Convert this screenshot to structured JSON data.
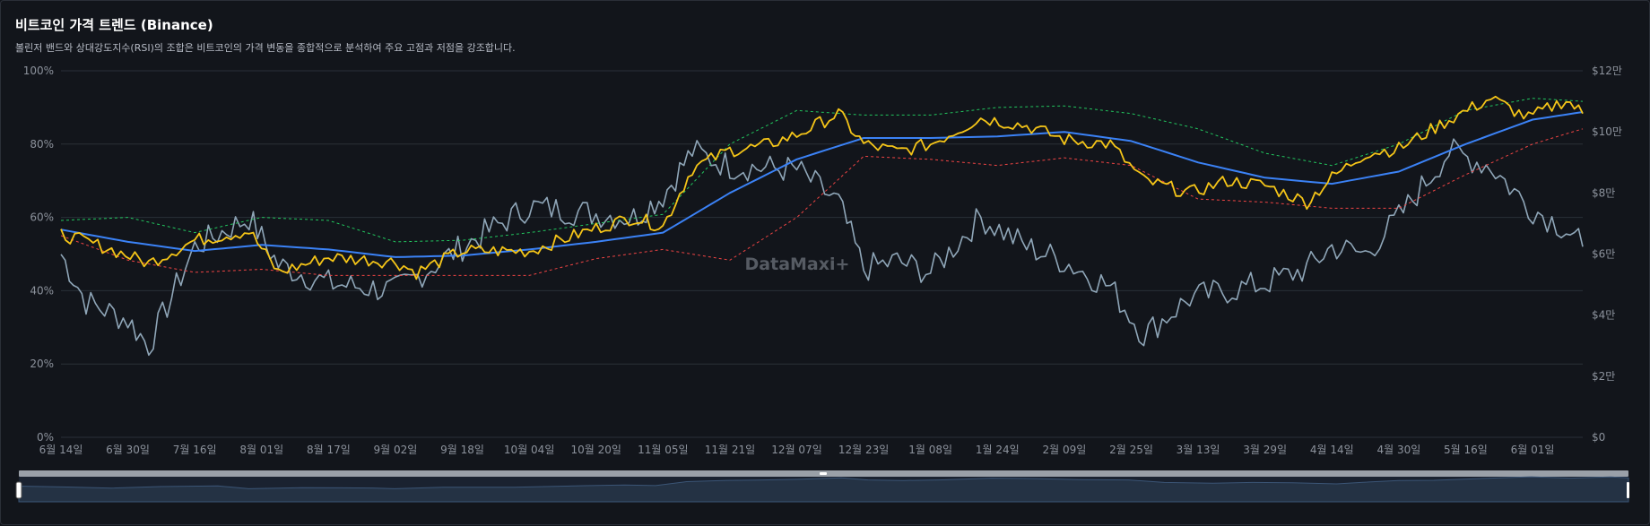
{
  "header": {
    "title": "비트코인 가격 트렌드 (Binance)",
    "subtitle": "볼린저 밴드와 상대강도지수(RSI)의 조합은 비트코인의 가격 변동을 종합적으로 분석하여 주요 고점과 저점을 강조합니다."
  },
  "watermark": "DataMaxi+",
  "colors": {
    "background": "#12151b",
    "price": "#f5c518",
    "sma": "#3b82f6",
    "upper_band": "#22c55e",
    "lower_band": "#ef4444",
    "rsi": "#8fa6b8",
    "grid": "#2a3038"
  },
  "chart_data": {
    "type": "line",
    "x_ticks": [
      "6월 14일",
      "6월 30일",
      "7월 16일",
      "8월 01일",
      "8월 17일",
      "9월 02일",
      "9월 18일",
      "10월 04일",
      "10월 20일",
      "11월 05일",
      "11월 21일",
      "12월 07일",
      "12월 23일",
      "1월 08일",
      "1월 24일",
      "2월 09일",
      "2월 25일",
      "3월 13일",
      "3월 29일",
      "4월 14일",
      "4월 30일",
      "5월 16일",
      "6월 01일"
    ],
    "left_axis": {
      "ticks": [
        "0%",
        "20%",
        "40%",
        "60%",
        "80%",
        "100%"
      ],
      "range": [
        0,
        100
      ]
    },
    "right_axis": {
      "ticks": [
        "$0",
        "$2만",
        "$4만",
        "$6만",
        "$8만",
        "$10만",
        "$12만"
      ],
      "range": [
        0,
        120000
      ]
    },
    "grid": true,
    "date_range": [
      "6월 14일",
      "6월 13일"
    ],
    "series": [
      {
        "role": "price",
        "axis": "right",
        "keypoints": [
          [
            "6월 14일",
            66500
          ],
          [
            "6월 25일",
            62000
          ],
          [
            "7월 05일",
            57000
          ],
          [
            "7월 16일",
            64500
          ],
          [
            "7월 29일",
            67500
          ],
          [
            "8월 05일",
            54000
          ],
          [
            "8월 17일",
            59000
          ],
          [
            "9월 02일",
            57500
          ],
          [
            "9월 07일",
            54000
          ],
          [
            "9월 18일",
            61000
          ],
          [
            "10월 04일",
            61000
          ],
          [
            "10월 20일",
            68500
          ],
          [
            "10월 29일",
            72000
          ],
          [
            "11월 05일",
            69000
          ],
          [
            "11월 12일",
            88000
          ],
          [
            "11월 21일",
            94000
          ],
          [
            "11월 28일",
            95000
          ],
          [
            "12월 07일",
            99000
          ],
          [
            "12월 17日",
            106000
          ],
          [
            "12월 23일",
            96000
          ],
          [
            "12월 31일",
            93500
          ],
          [
            "1월 08일",
            96000
          ],
          [
            "1월 20일",
            104500
          ],
          [
            "1월 31일",
            102000
          ],
          [
            "2월 09일",
            97500
          ],
          [
            "2월 20일",
            96000
          ],
          [
            "2월 28일",
            84000
          ],
          [
            "3월 11일",
            80000
          ],
          [
            "3월 20일",
            84000
          ],
          [
            "3월 29일",
            82500
          ],
          [
            "4월 08일",
            77000
          ],
          [
            "4월 14일",
            85000
          ],
          [
            "4월 22일",
            93000
          ],
          [
            "4월 30일",
            94500
          ],
          [
            "5월 12일",
            104000
          ],
          [
            "5월 22일",
            111000
          ],
          [
            "5월 31일",
            104500
          ],
          [
            "6월 09일",
            110500
          ],
          [
            "6월 13일",
            106000
          ]
        ]
      },
      {
        "role": "sma",
        "axis": "right",
        "keypoints": [
          [
            "6월 14일",
            68000
          ],
          [
            "6월 30일",
            64000
          ],
          [
            "7월 16일",
            61000
          ],
          [
            "8월 01일",
            63000
          ],
          [
            "8월 17일",
            61500
          ],
          [
            "9월 02일",
            59000
          ],
          [
            "9월 18일",
            59500
          ],
          [
            "10월 04일",
            61500
          ],
          [
            "10월 20일",
            64000
          ],
          [
            "11월 05일",
            67000
          ],
          [
            "11월 21일",
            80000
          ],
          [
            "12월 07일",
            91000
          ],
          [
            "12월 23일",
            98000
          ],
          [
            "1월 08일",
            98000
          ],
          [
            "1월 24일",
            98500
          ],
          [
            "2월 09일",
            100000
          ],
          [
            "2월 25일",
            97000
          ],
          [
            "3월 13일",
            90000
          ],
          [
            "3월 29일",
            85000
          ],
          [
            "4월 14일",
            83000
          ],
          [
            "4월 30일",
            87000
          ],
          [
            "5월 16일",
            96000
          ],
          [
            "6월 01일",
            104000
          ],
          [
            "6월 13일",
            106500
          ]
        ]
      },
      {
        "role": "upper_band",
        "axis": "right",
        "keypoints": [
          [
            "6월 14일",
            71000
          ],
          [
            "6월 30일",
            72000
          ],
          [
            "7월 16일",
            67000
          ],
          [
            "8월 01일",
            72000
          ],
          [
            "8월 17일",
            71000
          ],
          [
            "9월 02일",
            64000
          ],
          [
            "9월 18일",
            64500
          ],
          [
            "10월 04일",
            67000
          ],
          [
            "10월 20일",
            70000
          ],
          [
            "11월 05일",
            73000
          ],
          [
            "11월 21일",
            96000
          ],
          [
            "12월 07일",
            107000
          ],
          [
            "12월 23일",
            105500
          ],
          [
            "1월 08일",
            105500
          ],
          [
            "1월 24일",
            108000
          ],
          [
            "2월 09일",
            108500
          ],
          [
            "2월 25일",
            106000
          ],
          [
            "3월 13일",
            101000
          ],
          [
            "3월 29일",
            93000
          ],
          [
            "4월 14일",
            89000
          ],
          [
            "4월 30일",
            96000
          ],
          [
            "5월 16일",
            107000
          ],
          [
            "6월 01일",
            111000
          ],
          [
            "6월 13일",
            110000
          ]
        ]
      },
      {
        "role": "lower_band",
        "axis": "right",
        "keypoints": [
          [
            "6월 14일",
            66000
          ],
          [
            "6월 30일",
            58000
          ],
          [
            "7월 16일",
            54000
          ],
          [
            "8월 01일",
            55000
          ],
          [
            "8월 17일",
            53000
          ],
          [
            "9월 02일",
            53000
          ],
          [
            "9월 18일",
            53000
          ],
          [
            "10월 04일",
            53000
          ],
          [
            "10월 20일",
            58500
          ],
          [
            "11월 05일",
            61500
          ],
          [
            "11월 21일",
            58000
          ],
          [
            "12월 07일",
            72000
          ],
          [
            "12월 23일",
            92000
          ],
          [
            "1월 08일",
            91000
          ],
          [
            "1월 24일",
            89000
          ],
          [
            "2월 09일",
            91500
          ],
          [
            "2월 25일",
            89000
          ],
          [
            "3월 13일",
            78000
          ],
          [
            "3월 29일",
            77000
          ],
          [
            "4월 14일",
            75000
          ],
          [
            "4월 30일",
            75000
          ],
          [
            "5월 16일",
            86000
          ],
          [
            "6월 01일",
            96000
          ],
          [
            "6월 13일",
            101000
          ]
        ]
      },
      {
        "role": "rsi",
        "axis": "left",
        "keypoints": [
          [
            "6월 14일",
            50
          ],
          [
            "6월 20일",
            37
          ],
          [
            "6월 30일",
            32
          ],
          [
            "7월 05일",
            25
          ],
          [
            "7월 16일",
            52
          ],
          [
            "7월 29일",
            60
          ],
          [
            "8월 05일",
            47
          ],
          [
            "8월 17일",
            42
          ],
          [
            "9월 02일",
            40
          ],
          [
            "9월 18일",
            52
          ],
          [
            "10월 04일",
            63
          ],
          [
            "10월 20일",
            61
          ],
          [
            "10월 29일",
            60
          ],
          [
            "11월 05일",
            66
          ],
          [
            "11월 12일",
            78
          ],
          [
            "11월 21일",
            74
          ],
          [
            "12월 07일",
            73
          ],
          [
            "12월 17일",
            64
          ],
          [
            "12월 23일",
            46
          ],
          [
            "12월 31일",
            48
          ],
          [
            "1월 08일",
            45
          ],
          [
            "1월 20일",
            60
          ],
          [
            "1월 31일",
            52
          ],
          [
            "2월 09일",
            48
          ],
          [
            "2월 20일",
            41
          ],
          [
            "2월 28일",
            28
          ],
          [
            "3월 11일",
            38
          ],
          [
            "3월 20일",
            40
          ],
          [
            "3월 29일",
            42
          ],
          [
            "4월 08일",
            46
          ],
          [
            "4월 14일",
            52
          ],
          [
            "4월 22일",
            50
          ],
          [
            "4월 30일",
            60
          ],
          [
            "5월 12일",
            78
          ],
          [
            "5월 22일",
            74
          ],
          [
            "5월 31일",
            63
          ],
          [
            "6월 09일",
            57
          ],
          [
            "6월 13일",
            52
          ]
        ]
      }
    ]
  }
}
